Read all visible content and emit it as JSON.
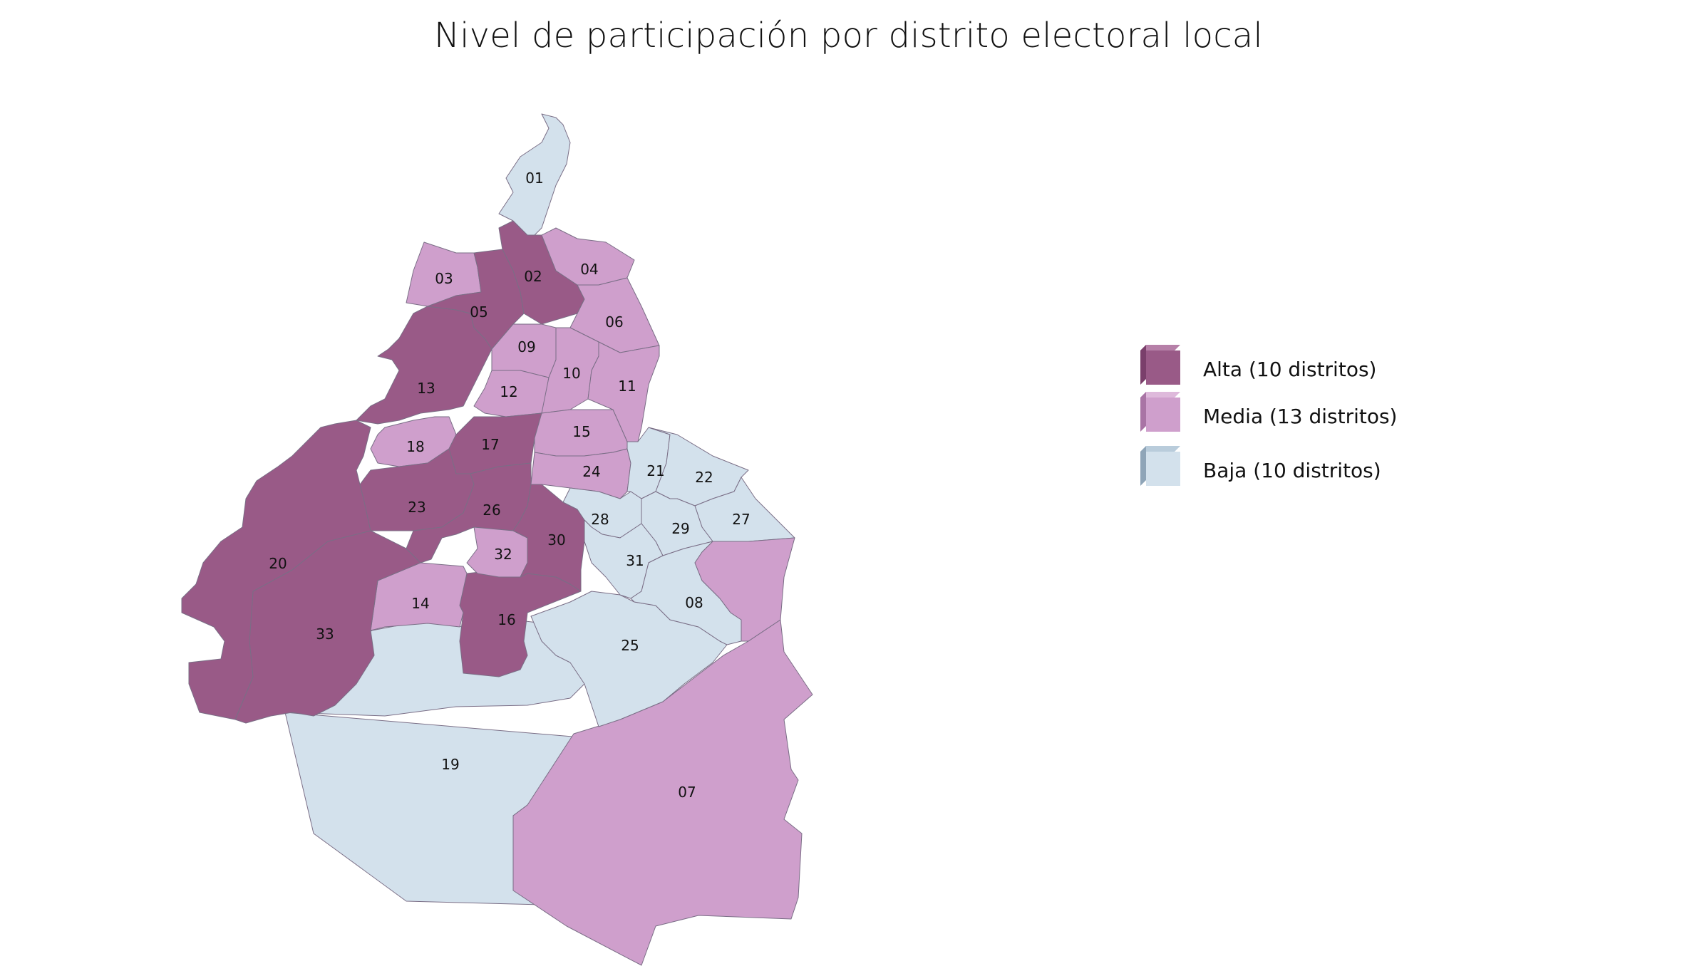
{
  "title": "Nivel de participación por distrito electoral local",
  "colors": {
    "Alta": "#995a87",
    "Media": "#cf9fcc",
    "Baja": "#d3e1ec",
    "border": "#7a6e86"
  },
  "legend": [
    {
      "level": "Alta",
      "label": "Alta (10 distritos)"
    },
    {
      "level": "Media",
      "label": "Media (13 distritos)"
    },
    {
      "level": "Baja",
      "label": "Baja (10 distritos)"
    }
  ],
  "districts": [
    {
      "id": "01",
      "level": "Baja"
    },
    {
      "id": "02",
      "level": "Alta"
    },
    {
      "id": "03",
      "level": "Media"
    },
    {
      "id": "04",
      "level": "Media"
    },
    {
      "id": "05",
      "level": "Alta"
    },
    {
      "id": "06",
      "level": "Media"
    },
    {
      "id": "07",
      "level": "Media"
    },
    {
      "id": "08",
      "level": "Baja"
    },
    {
      "id": "09",
      "level": "Media"
    },
    {
      "id": "10",
      "level": "Media"
    },
    {
      "id": "11",
      "level": "Media"
    },
    {
      "id": "12",
      "level": "Media"
    },
    {
      "id": "13",
      "level": "Alta"
    },
    {
      "id": "14",
      "level": "Media"
    },
    {
      "id": "15",
      "level": "Media"
    },
    {
      "id": "16",
      "level": "Alta"
    },
    {
      "id": "17",
      "level": "Alta"
    },
    {
      "id": "18",
      "level": "Media"
    },
    {
      "id": "19",
      "level": "Baja"
    },
    {
      "id": "20",
      "level": "Alta"
    },
    {
      "id": "21",
      "level": "Baja"
    },
    {
      "id": "22",
      "level": "Baja"
    },
    {
      "id": "23",
      "level": "Alta"
    },
    {
      "id": "24",
      "level": "Media"
    },
    {
      "id": "25",
      "level": "Baja"
    },
    {
      "id": "26",
      "level": "Alta"
    },
    {
      "id": "27",
      "level": "Baja"
    },
    {
      "id": "28",
      "level": "Baja"
    },
    {
      "id": "29",
      "level": "Baja"
    },
    {
      "id": "30",
      "level": "Alta"
    },
    {
      "id": "31",
      "level": "Baja"
    },
    {
      "id": "32",
      "level": "Media"
    },
    {
      "id": "33",
      "level": "Alta"
    }
  ]
}
